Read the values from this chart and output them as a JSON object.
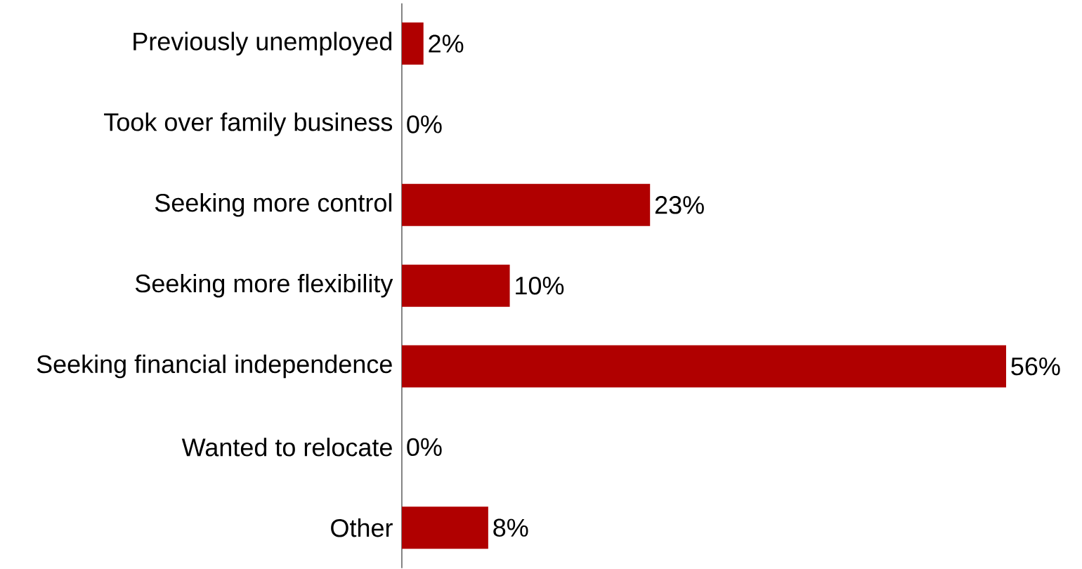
{
  "chart_data": {
    "type": "bar",
    "orientation": "horizontal",
    "categories": [
      "Previously unemployed",
      "Took over family business",
      "Seeking more control",
      "Seeking more flexibility",
      "Seeking financial independence",
      "Wanted to relocate",
      "Other"
    ],
    "values": [
      2,
      0,
      23,
      10,
      56,
      0,
      8
    ],
    "value_labels": [
      "2%",
      "0%",
      "23%",
      "10%",
      "56%",
      "0%",
      "8%"
    ],
    "color": "#b00000"
  }
}
